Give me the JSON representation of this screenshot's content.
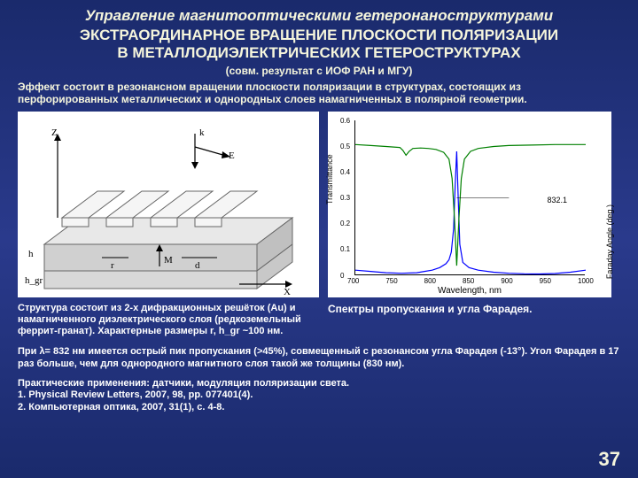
{
  "title_italic": "Управление магнитооптическими гетеронаноструктурами",
  "title_main_l1": "ЭКСТРАОРДИНАРНОЕ ВРАЩЕНИЕ ПЛОСКОСТИ ПОЛЯРИЗАЦИИ",
  "title_main_l2": "В МЕТАЛЛОДИЭЛЕКТРИЧЕСКИХ ГЕТЕРОСТРУКТУРАХ",
  "subtitle": "(совм. результат с ИОФ РАН и МГУ)",
  "intro": "Эффект состоит в резонансном вращении плоскости поляризации в структурах, состоящих из перфорированных металлических и однородных слоев намагниченных в полярной геометрии.",
  "left_diagram": {
    "axis_z": "Z",
    "axis_x": "X",
    "label_k": "k",
    "label_E": "E",
    "label_h": "h",
    "label_hgr": "h_gr",
    "label_r": "r",
    "label_M": "M",
    "label_d": "d"
  },
  "right_chart": {
    "xlabel": "Wavelength, nm",
    "ylabel_left": "Transmittance",
    "ylabel_right": "Faraday Angle (deg.)",
    "xlim": [
      700,
      1000
    ],
    "xticks": [
      700,
      750,
      800,
      850,
      900,
      950,
      1000
    ],
    "ylim_left": [
      0,
      0.6
    ],
    "yticks_left": [
      0,
      0.1,
      0.2,
      0.3,
      0.4,
      0.5,
      0.6
    ],
    "ylim_right": [
      -14,
      2
    ],
    "peak_label": "832.1",
    "trans_color": "#0000ff",
    "faraday_color": "#008000",
    "line_width": 1.2,
    "background": "#ffffff",
    "transmittance": [
      [
        700,
        0.02
      ],
      [
        720,
        0.015
      ],
      [
        740,
        0.01
      ],
      [
        760,
        0.008
      ],
      [
        780,
        0.01
      ],
      [
        790,
        0.015
      ],
      [
        800,
        0.02
      ],
      [
        810,
        0.03
      ],
      [
        818,
        0.045
      ],
      [
        822,
        0.06
      ],
      [
        825,
        0.09
      ],
      [
        828,
        0.18
      ],
      [
        830,
        0.35
      ],
      [
        832,
        0.48
      ],
      [
        834,
        0.3
      ],
      [
        836,
        0.12
      ],
      [
        840,
        0.05
      ],
      [
        848,
        0.03
      ],
      [
        860,
        0.02
      ],
      [
        880,
        0.012
      ],
      [
        900,
        0.008
      ],
      [
        920,
        0.006
      ],
      [
        940,
        0.005
      ],
      [
        960,
        0.007
      ],
      [
        980,
        0.012
      ],
      [
        1000,
        0.02
      ]
    ],
    "faraday": [
      [
        700,
        -0.5
      ],
      [
        720,
        -0.6
      ],
      [
        740,
        -0.7
      ],
      [
        750,
        -0.75
      ],
      [
        758,
        -0.8
      ],
      [
        762,
        -1.1
      ],
      [
        766,
        -1.6
      ],
      [
        770,
        -1.2
      ],
      [
        775,
        -0.9
      ],
      [
        785,
        -0.85
      ],
      [
        795,
        -0.9
      ],
      [
        805,
        -1.0
      ],
      [
        815,
        -1.3
      ],
      [
        822,
        -2.0
      ],
      [
        826,
        -4.0
      ],
      [
        829,
        -8.0
      ],
      [
        832,
        -13.0
      ],
      [
        835,
        -8.0
      ],
      [
        838,
        -4.0
      ],
      [
        842,
        -2.0
      ],
      [
        850,
        -1.2
      ],
      [
        860,
        -0.9
      ],
      [
        880,
        -0.7
      ],
      [
        900,
        -0.6
      ],
      [
        930,
        -0.55
      ],
      [
        960,
        -0.5
      ],
      [
        1000,
        -0.5
      ]
    ]
  },
  "caption_left": "Структура состоит из 2-х дифракционных решёток (Au) и намагниченного диэлектрического слоя (редкоземельный феррит-гранат). Характерные размеры r, h_gr ~100 нм.",
  "caption_right": "Спектры пропускания и угла Фарадея.",
  "body1": "При λ= 832 нм имеется острый пик пропускания (>45%), совмещенный с резонансом угла Фарадея (-13°). Угол Фарадея в 17 раз больше, чем для однородного магнитного слоя такой же толщины (830 нм).",
  "refs_head": "Практические применения: датчики, модуляция поляризации света.",
  "ref1": "1. Physical Review Letters, 2007, 98, pp. 077401(4).",
  "ref2": "2. Компьютерная оптика, 2007, 31(1), с. 4-8.",
  "page": "37"
}
